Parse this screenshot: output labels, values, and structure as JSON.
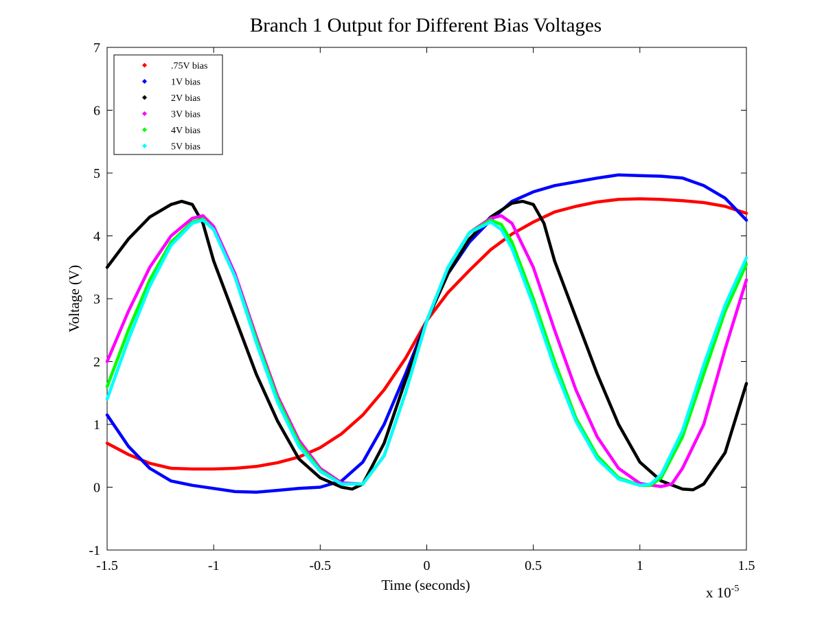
{
  "chart_data": {
    "type": "line",
    "title": "Branch 1 Output for Different Bias Voltages",
    "xlabel": "Time (seconds)",
    "ylabel": "Voltage (V)",
    "x_multiplier_label": "x 10",
    "x_multiplier_exponent": "-5",
    "xlim": [
      -1.5,
      1.5
    ],
    "ylim": [
      -1,
      7
    ],
    "xticks": [
      -1.5,
      -1,
      -0.5,
      0,
      0.5,
      1,
      1.5
    ],
    "xtick_labels": [
      "-1.5",
      "-1",
      "-0.5",
      "0",
      "0.5",
      "1",
      "1.5"
    ],
    "yticks": [
      -1,
      0,
      1,
      2,
      3,
      4,
      5,
      6,
      7
    ],
    "ytick_labels": [
      "-1",
      "0",
      "1",
      "2",
      "3",
      "4",
      "5",
      "6",
      "7"
    ],
    "grid": false,
    "legend_position": "top-left",
    "series": [
      {
        "name": ".75V bias",
        "color": "#ff0000",
        "points": [
          [
            -1.5,
            0.7
          ],
          [
            -1.4,
            0.52
          ],
          [
            -1.3,
            0.38
          ],
          [
            -1.2,
            0.3
          ],
          [
            -1.1,
            0.29
          ],
          [
            -1.0,
            0.29
          ],
          [
            -0.9,
            0.3
          ],
          [
            -0.8,
            0.33
          ],
          [
            -0.7,
            0.39
          ],
          [
            -0.6,
            0.48
          ],
          [
            -0.5,
            0.63
          ],
          [
            -0.4,
            0.85
          ],
          [
            -0.3,
            1.15
          ],
          [
            -0.2,
            1.55
          ],
          [
            -0.1,
            2.05
          ],
          [
            0.0,
            2.65
          ],
          [
            0.1,
            3.1
          ],
          [
            0.2,
            3.45
          ],
          [
            0.3,
            3.78
          ],
          [
            0.4,
            4.03
          ],
          [
            0.5,
            4.22
          ],
          [
            0.6,
            4.38
          ],
          [
            0.7,
            4.47
          ],
          [
            0.8,
            4.54
          ],
          [
            0.9,
            4.58
          ],
          [
            1.0,
            4.59
          ],
          [
            1.1,
            4.58
          ],
          [
            1.2,
            4.56
          ],
          [
            1.3,
            4.53
          ],
          [
            1.4,
            4.47
          ],
          [
            1.5,
            4.36
          ]
        ]
      },
      {
        "name": "1V bias",
        "color": "#0000ff",
        "points": [
          [
            -1.5,
            1.15
          ],
          [
            -1.4,
            0.65
          ],
          [
            -1.3,
            0.3
          ],
          [
            -1.2,
            0.1
          ],
          [
            -1.1,
            0.03
          ],
          [
            -1.0,
            -0.02
          ],
          [
            -0.9,
            -0.07
          ],
          [
            -0.8,
            -0.08
          ],
          [
            -0.7,
            -0.05
          ],
          [
            -0.6,
            -0.02
          ],
          [
            -0.5,
            0.0
          ],
          [
            -0.4,
            0.1
          ],
          [
            -0.3,
            0.4
          ],
          [
            -0.2,
            1.0
          ],
          [
            -0.1,
            1.8
          ],
          [
            0.0,
            2.65
          ],
          [
            0.1,
            3.4
          ],
          [
            0.2,
            3.9
          ],
          [
            0.3,
            4.25
          ],
          [
            0.4,
            4.55
          ],
          [
            0.5,
            4.7
          ],
          [
            0.6,
            4.8
          ],
          [
            0.7,
            4.86
          ],
          [
            0.8,
            4.92
          ],
          [
            0.9,
            4.97
          ],
          [
            1.0,
            4.96
          ],
          [
            1.1,
            4.95
          ],
          [
            1.2,
            4.92
          ],
          [
            1.3,
            4.8
          ],
          [
            1.4,
            4.6
          ],
          [
            1.5,
            4.25
          ]
        ]
      },
      {
        "name": "2V bias",
        "color": "#000000",
        "points": [
          [
            -1.5,
            3.5
          ],
          [
            -1.4,
            3.95
          ],
          [
            -1.3,
            4.3
          ],
          [
            -1.2,
            4.5
          ],
          [
            -1.15,
            4.55
          ],
          [
            -1.1,
            4.5
          ],
          [
            -1.05,
            4.2
          ],
          [
            -1.0,
            3.6
          ],
          [
            -0.9,
            2.7
          ],
          [
            -0.8,
            1.8
          ],
          [
            -0.7,
            1.05
          ],
          [
            -0.6,
            0.45
          ],
          [
            -0.5,
            0.15
          ],
          [
            -0.4,
            0.0
          ],
          [
            -0.35,
            -0.03
          ],
          [
            -0.3,
            0.05
          ],
          [
            -0.2,
            0.7
          ],
          [
            -0.1,
            1.7
          ],
          [
            0.0,
            2.65
          ],
          [
            0.1,
            3.4
          ],
          [
            0.2,
            3.95
          ],
          [
            0.3,
            4.3
          ],
          [
            0.4,
            4.52
          ],
          [
            0.45,
            4.55
          ],
          [
            0.5,
            4.5
          ],
          [
            0.55,
            4.2
          ],
          [
            0.6,
            3.6
          ],
          [
            0.7,
            2.7
          ],
          [
            0.8,
            1.8
          ],
          [
            0.9,
            1.0
          ],
          [
            1.0,
            0.4
          ],
          [
            1.1,
            0.1
          ],
          [
            1.2,
            -0.03
          ],
          [
            1.25,
            -0.04
          ],
          [
            1.3,
            0.05
          ],
          [
            1.4,
            0.55
          ],
          [
            1.5,
            1.65
          ]
        ]
      },
      {
        "name": "3V bias",
        "color": "#ff00ff",
        "points": [
          [
            -1.5,
            2.0
          ],
          [
            -1.4,
            2.8
          ],
          [
            -1.3,
            3.5
          ],
          [
            -1.2,
            4.0
          ],
          [
            -1.1,
            4.28
          ],
          [
            -1.05,
            4.32
          ],
          [
            -1.0,
            4.15
          ],
          [
            -0.9,
            3.4
          ],
          [
            -0.8,
            2.4
          ],
          [
            -0.7,
            1.45
          ],
          [
            -0.6,
            0.75
          ],
          [
            -0.5,
            0.3
          ],
          [
            -0.4,
            0.07
          ],
          [
            -0.3,
            0.05
          ],
          [
            -0.2,
            0.5
          ],
          [
            -0.1,
            1.5
          ],
          [
            0.0,
            2.65
          ],
          [
            0.1,
            3.5
          ],
          [
            0.2,
            4.05
          ],
          [
            0.3,
            4.28
          ],
          [
            0.35,
            4.32
          ],
          [
            0.4,
            4.2
          ],
          [
            0.5,
            3.5
          ],
          [
            0.6,
            2.5
          ],
          [
            0.7,
            1.55
          ],
          [
            0.8,
            0.8
          ],
          [
            0.9,
            0.3
          ],
          [
            1.0,
            0.06
          ],
          [
            1.1,
            0.01
          ],
          [
            1.15,
            0.05
          ],
          [
            1.2,
            0.3
          ],
          [
            1.3,
            1.0
          ],
          [
            1.4,
            2.2
          ],
          [
            1.5,
            3.3
          ]
        ]
      },
      {
        "name": "4V bias",
        "color": "#00ff00",
        "points": [
          [
            -1.5,
            1.6
          ],
          [
            -1.4,
            2.5
          ],
          [
            -1.3,
            3.3
          ],
          [
            -1.2,
            3.9
          ],
          [
            -1.1,
            4.22
          ],
          [
            -1.05,
            4.27
          ],
          [
            -1.0,
            4.1
          ],
          [
            -0.9,
            3.35
          ],
          [
            -0.8,
            2.35
          ],
          [
            -0.7,
            1.4
          ],
          [
            -0.6,
            0.7
          ],
          [
            -0.5,
            0.27
          ],
          [
            -0.4,
            0.05
          ],
          [
            -0.3,
            0.05
          ],
          [
            -0.2,
            0.5
          ],
          [
            -0.1,
            1.5
          ],
          [
            0.0,
            2.65
          ],
          [
            0.1,
            3.5
          ],
          [
            0.2,
            4.05
          ],
          [
            0.3,
            4.25
          ],
          [
            0.35,
            4.18
          ],
          [
            0.4,
            3.9
          ],
          [
            0.5,
            3.0
          ],
          [
            0.6,
            2.0
          ],
          [
            0.7,
            1.1
          ],
          [
            0.8,
            0.5
          ],
          [
            0.9,
            0.15
          ],
          [
            1.0,
            0.03
          ],
          [
            1.05,
            0.03
          ],
          [
            1.1,
            0.15
          ],
          [
            1.2,
            0.8
          ],
          [
            1.3,
            1.8
          ],
          [
            1.4,
            2.8
          ],
          [
            1.5,
            3.55
          ]
        ]
      },
      {
        "name": "5V bias",
        "color": "#00ffff",
        "points": [
          [
            -1.5,
            1.4
          ],
          [
            -1.4,
            2.35
          ],
          [
            -1.3,
            3.2
          ],
          [
            -1.2,
            3.85
          ],
          [
            -1.1,
            4.2
          ],
          [
            -1.05,
            4.25
          ],
          [
            -1.0,
            4.1
          ],
          [
            -0.9,
            3.35
          ],
          [
            -0.8,
            2.3
          ],
          [
            -0.7,
            1.35
          ],
          [
            -0.6,
            0.65
          ],
          [
            -0.5,
            0.25
          ],
          [
            -0.4,
            0.05
          ],
          [
            -0.3,
            0.05
          ],
          [
            -0.2,
            0.5
          ],
          [
            -0.1,
            1.5
          ],
          [
            0.0,
            2.65
          ],
          [
            0.1,
            3.5
          ],
          [
            0.2,
            4.05
          ],
          [
            0.3,
            4.22
          ],
          [
            0.35,
            4.1
          ],
          [
            0.4,
            3.8
          ],
          [
            0.5,
            2.9
          ],
          [
            0.6,
            1.9
          ],
          [
            0.7,
            1.05
          ],
          [
            0.8,
            0.45
          ],
          [
            0.9,
            0.13
          ],
          [
            1.0,
            0.03
          ],
          [
            1.05,
            0.05
          ],
          [
            1.1,
            0.2
          ],
          [
            1.2,
            0.9
          ],
          [
            1.3,
            1.95
          ],
          [
            1.4,
            2.9
          ],
          [
            1.5,
            3.65
          ]
        ]
      }
    ]
  }
}
